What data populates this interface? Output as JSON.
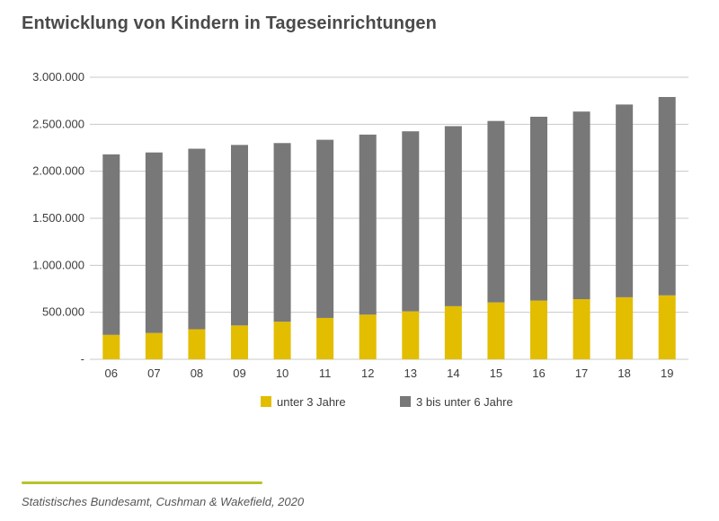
{
  "chart_data": {
    "type": "bar",
    "stacked": true,
    "title": "Entwicklung von Kindern in Tageseinrichtungen",
    "categories": [
      "06",
      "07",
      "08",
      "09",
      "10",
      "11",
      "12",
      "13",
      "14",
      "15",
      "16",
      "17",
      "18",
      "19"
    ],
    "series": [
      {
        "name": "unter 3 Jahre",
        "color": "#e3bd00",
        "values": [
          260000,
          280000,
          320000,
          360000,
          400000,
          440000,
          475000,
          510000,
          565000,
          605000,
          625000,
          640000,
          660000,
          680000
        ]
      },
      {
        "name": "3 bis unter 6 Jahre",
        "color": "#787878",
        "values": [
          1920000,
          1920000,
          1920000,
          1920000,
          1900000,
          1895000,
          1915000,
          1915000,
          1915000,
          1930000,
          1955000,
          1995000,
          2050000,
          2110000
        ]
      }
    ],
    "yticks": [
      "-",
      "500.000",
      "1.000.000",
      "1.500.000",
      "2.000.000",
      "2.500.000",
      "3.000.000"
    ],
    "ytick_values": [
      0,
      500000,
      1000000,
      1500000,
      2000000,
      2500000,
      3000000
    ],
    "ylim": [
      0,
      3000000
    ],
    "xlabel": "",
    "ylabel": "",
    "grid": true,
    "legend_position": "bottom"
  },
  "source": "Statistisches Bundesamt, Cushman & Wakefield, 2020",
  "colors": {
    "grid": "#c8c8c8",
    "accent_line": "#b9c22a"
  }
}
